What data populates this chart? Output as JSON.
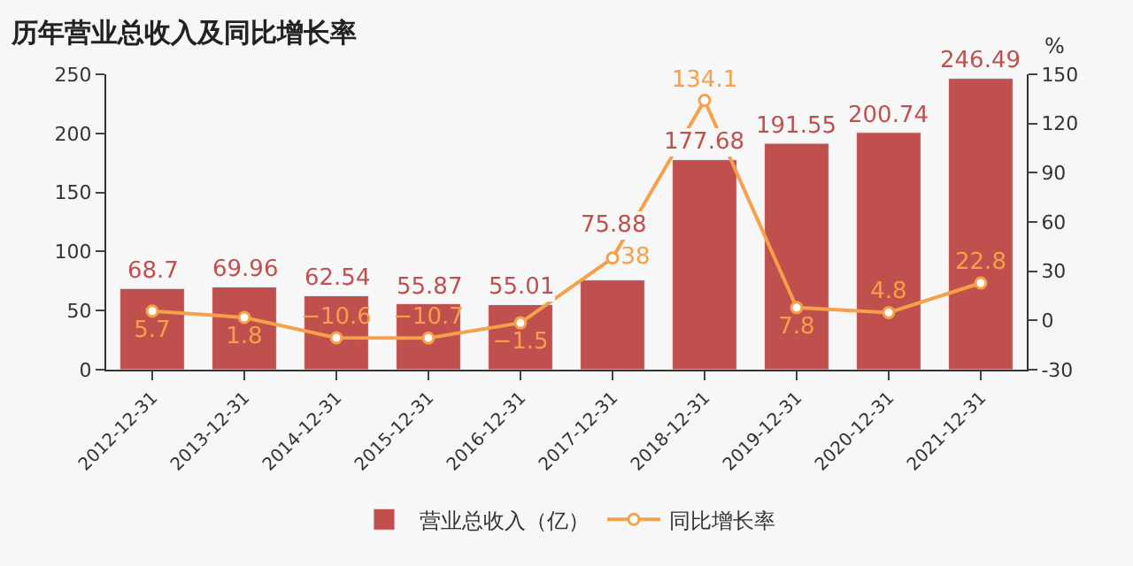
{
  "chart_data": {
    "type": "bar",
    "title": "历年营业总收入及同比增长率",
    "categories": [
      "2012-12-31",
      "2013-12-31",
      "2014-12-31",
      "2015-12-31",
      "2016-12-31",
      "2017-12-31",
      "2018-12-31",
      "2019-12-31",
      "2020-12-31",
      "2021-12-31"
    ],
    "series": [
      {
        "name": "营业总收入（亿）",
        "color": "#c0504d",
        "values": [
          68.7,
          69.96,
          62.54,
          55.87,
          55.01,
          75.88,
          177.68,
          191.55,
          200.74,
          246.49
        ]
      },
      {
        "name": "同比增长率",
        "type": "line",
        "axis": "y2",
        "color": "#f5a04a",
        "marker": "circle",
        "values": [
          5.7,
          1.8,
          -10.6,
          -10.7,
          -1.5,
          38,
          134.1,
          7.8,
          4.8,
          22.8
        ]
      }
    ],
    "y2label": "%",
    "ylim": [
      0,
      250
    ],
    "yticks": [
      0,
      50,
      100,
      150,
      200,
      250
    ],
    "y2lim": [
      -30,
      150
    ],
    "y2ticks": [
      -30,
      0,
      30,
      60,
      90,
      120,
      150
    ],
    "data_labels": true,
    "grid": false,
    "legend": "bottom"
  }
}
